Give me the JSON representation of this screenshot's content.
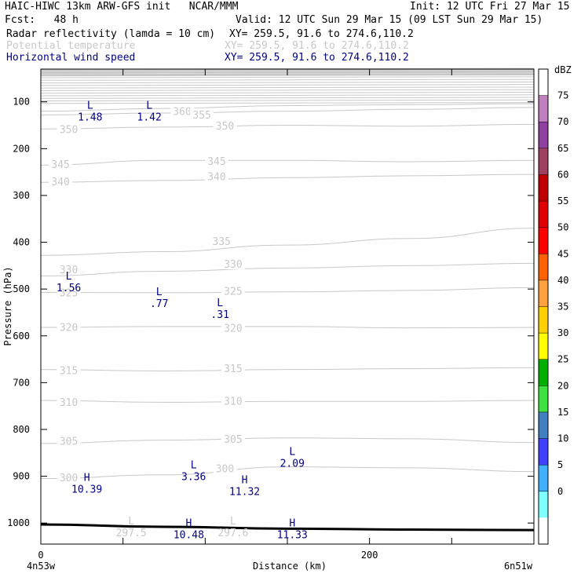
{
  "header": {
    "model_line": "HAIC-HIWC 13km ARW-GFS init   NCAR/MMM",
    "init": "Init: 12 UTC Fri 27 Mar 15",
    "fcst": "Fcst:   48 h",
    "valid": "Valid: 12 UTC Sun 29 Mar 15 (09 LST Sun 29 Mar 15)",
    "fields": [
      {
        "name": "Radar reflectivity (lamda = 10 cm)",
        "xy": "XY= 259.5, 91.6 to 274.6,110.2",
        "color": "#000000"
      },
      {
        "name": "Potential temperature",
        "xy": "XY= 259.5, 91.6 to 274.6,110.2",
        "color": "#c8c8c8"
      },
      {
        "name": "Horizontal wind speed",
        "xy": "XY= 259.5, 91.6 to 274.6,110.2",
        "color": "#000080"
      }
    ]
  },
  "chart_data": {
    "type": "cross-section",
    "xlabel": "Distance (km)",
    "ylabel": "Pressure (hPa)",
    "x_ticks": [
      {
        "value": 0,
        "label": "0"
      },
      {
        "value": 200,
        "label": "200"
      }
    ],
    "x_end_labels": {
      "left": "4n53w",
      "right": "6n51w"
    },
    "xlim": [
      0,
      300
    ],
    "y_ticks": [
      100,
      200,
      300,
      400,
      500,
      600,
      700,
      800,
      900,
      1000
    ],
    "ylim": [
      1045,
      30
    ],
    "colorbar": {
      "title": "dBZ",
      "levels": [
        "75",
        "70",
        "65",
        "60",
        "55",
        "50",
        "45",
        "40",
        "35",
        "30",
        "25",
        "20",
        "15",
        "10",
        "5",
        "0"
      ],
      "colors": [
        "#ffffff",
        "#c080c0",
        "#9040a0",
        "#a04060",
        "#c00000",
        "#e00000",
        "#ff0000",
        "#ff6000",
        "#ffa040",
        "#ffd000",
        "#ffff00",
        "#00b000",
        "#40e040",
        "#4080c0",
        "#4040ff",
        "#40b0ff",
        "#80ffff",
        "#ffffff"
      ]
    },
    "theta_contours": [
      {
        "value": "360",
        "p": [
          120,
          114,
          108,
          106,
          104
        ]
      },
      {
        "value": "355",
        "p": [
          128,
          124,
          120,
          116,
          112
        ]
      },
      {
        "value": "350",
        "p": [
          158,
          154,
          150,
          152,
          148
        ]
      },
      {
        "value": "345",
        "p": [
          235,
          225,
          225,
          228,
          225
        ]
      },
      {
        "value": "340",
        "p": [
          272,
          268,
          262,
          258,
          255
        ]
      },
      {
        "value": "335",
        "p": [
          428,
          420,
          406,
          392,
          370
        ]
      },
      {
        "value": "330",
        "p": [
          472,
          462,
          455,
          450,
          445
        ]
      },
      {
        "value": "325",
        "p": [
          507,
          508,
          506,
          503,
          497
        ]
      },
      {
        "value": "320",
        "p": [
          582,
          580,
          580,
          583,
          582
        ]
      },
      {
        "value": "315",
        "p": [
          672,
          675,
          672,
          670,
          668
        ]
      },
      {
        "value": "310",
        "p": [
          738,
          742,
          740,
          740,
          738
        ]
      },
      {
        "value": "305",
        "p": [
          830,
          823,
          818,
          820,
          828
        ]
      },
      {
        "value": "300",
        "p": [
          905,
          897,
          880,
          882,
          890
        ]
      }
    ],
    "theta_contour_x": [
      0,
      75,
      150,
      225,
      300
    ],
    "theta_labels": [
      {
        "text": "360",
        "x": 86,
        "p": 120
      },
      {
        "text": "355",
        "x": 98,
        "p": 127
      },
      {
        "text": "350",
        "x": 17,
        "p": 158
      },
      {
        "text": "350",
        "x": 112,
        "p": 151
      },
      {
        "text": "345",
        "x": 12,
        "p": 233
      },
      {
        "text": "345",
        "x": 107,
        "p": 226
      },
      {
        "text": "340",
        "x": 12,
        "p": 270
      },
      {
        "text": "340",
        "x": 107,
        "p": 259
      },
      {
        "text": "335",
        "x": 110,
        "p": 397
      },
      {
        "text": "330",
        "x": 17,
        "p": 458
      },
      {
        "text": "330",
        "x": 117,
        "p": 446
      },
      {
        "text": "325",
        "x": 17,
        "p": 507
      },
      {
        "text": "325",
        "x": 117,
        "p": 504
      },
      {
        "text": "320",
        "x": 17,
        "p": 581
      },
      {
        "text": "320",
        "x": 117,
        "p": 583
      },
      {
        "text": "315",
        "x": 17,
        "p": 673
      },
      {
        "text": "315",
        "x": 117,
        "p": 669
      },
      {
        "text": "310",
        "x": 17,
        "p": 741
      },
      {
        "text": "310",
        "x": 117,
        "p": 739
      },
      {
        "text": "305",
        "x": 17,
        "p": 824
      },
      {
        "text": "305",
        "x": 117,
        "p": 820
      },
      {
        "text": "300",
        "x": 17,
        "p": 902
      },
      {
        "text": "300",
        "x": 112,
        "p": 883
      }
    ],
    "extrema": [
      {
        "type": "L",
        "value": "1.48",
        "x": 30,
        "p": 115,
        "field": "wind"
      },
      {
        "type": "L",
        "value": "1.42",
        "x": 66,
        "p": 115,
        "field": "wind"
      },
      {
        "type": "L",
        "value": "1.56",
        "x": 17,
        "p": 480,
        "field": "wind"
      },
      {
        "type": "L",
        "value": ".77",
        "x": 72,
        "p": 513,
        "field": "wind"
      },
      {
        "type": "L",
        "value": ".31",
        "x": 109,
        "p": 537,
        "field": "wind"
      },
      {
        "type": "L",
        "value": "3.36",
        "x": 93,
        "p": 883,
        "field": "wind"
      },
      {
        "type": "L",
        "value": "2.09",
        "x": 153,
        "p": 855,
        "field": "wind"
      },
      {
        "type": "H",
        "value": "10.39",
        "x": 28,
        "p": 910,
        "field": "wind"
      },
      {
        "type": "H",
        "value": "11.32",
        "x": 124,
        "p": 915,
        "field": "wind"
      },
      {
        "type": "H",
        "value": "10.48",
        "x": 90,
        "p": 1007,
        "field": "wind"
      },
      {
        "type": "H",
        "value": "11.33",
        "x": 153,
        "p": 1007,
        "field": "wind"
      },
      {
        "type": "L",
        "value": "297.5",
        "x": 55,
        "p": 1003,
        "field": "theta"
      },
      {
        "type": "L",
        "value": "297.6",
        "x": 117,
        "p": 1003,
        "field": "theta"
      }
    ],
    "surface_p": [
      1003,
      1008,
      1012,
      1014,
      1015
    ],
    "colors": {
      "theta": "#c8c8c8",
      "wind": "#000080",
      "axis": "#000000",
      "surface": "#000000"
    }
  }
}
